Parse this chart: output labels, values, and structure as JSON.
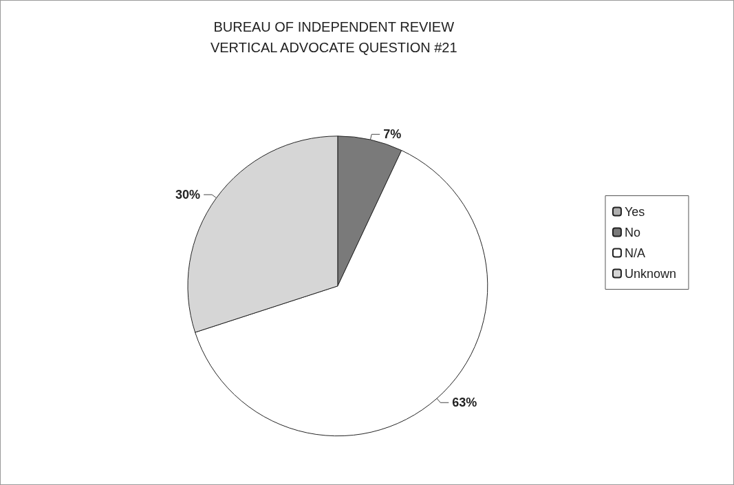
{
  "chart_data": {
    "type": "pie",
    "title": "BUREAU OF INDEPENDENT REVIEW\nVERTICAL ADVOCATE QUESTION #21",
    "categories": [
      "Yes",
      "No",
      "N/A",
      "Unknown"
    ],
    "values": [
      0,
      7,
      63,
      30
    ],
    "colors": [
      "#b0b0b0",
      "#7a7a7a",
      "#ffffff",
      "#d6d6d6"
    ],
    "value_labels": [
      null,
      "7%",
      "63%",
      "30%"
    ],
    "legend": "right"
  }
}
